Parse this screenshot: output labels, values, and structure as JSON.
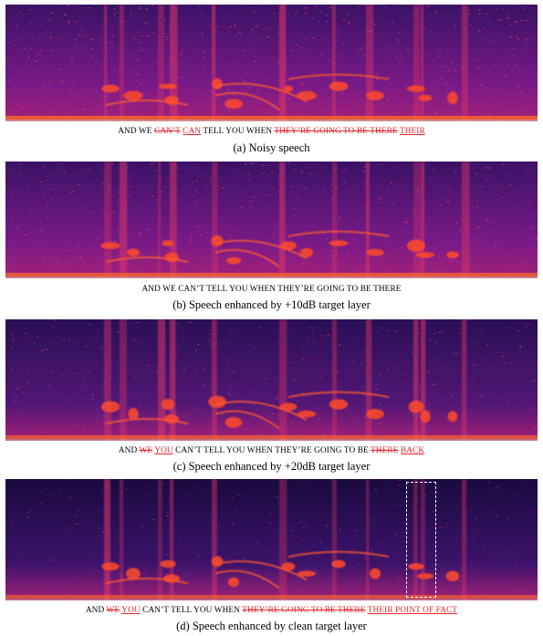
{
  "panels": [
    {
      "caption": "(a)  Noisy speech",
      "noise": 0.62,
      "transcript": [
        {
          "t": "AND WE ",
          "k": "plain"
        },
        {
          "t": "CAN’T",
          "k": "del"
        },
        {
          "t": " ",
          "k": "plain"
        },
        {
          "t": "CAN",
          "k": "ins"
        },
        {
          "t": " TELL YOU WHEN ",
          "k": "plain"
        },
        {
          "t": "THEY’RE GOING TO BE THERE",
          "k": "del"
        },
        {
          "t": " ",
          "k": "plain"
        },
        {
          "t": "THEIR",
          "k": "ins"
        }
      ]
    },
    {
      "caption": "(b)  Speech enhanced by +10dB target layer",
      "noise": 0.5,
      "transcript": [
        {
          "t": "AND WE CAN’T TELL YOU WHEN THEY’RE GOING TO BE THERE",
          "k": "plain"
        }
      ]
    },
    {
      "caption": "(c)  Speech enhanced by +20dB target layer",
      "noise": 0.32,
      "transcript": [
        {
          "t": "AND ",
          "k": "plain"
        },
        {
          "t": "WE",
          "k": "del"
        },
        {
          "t": " ",
          "k": "plain"
        },
        {
          "t": "YOU",
          "k": "ins"
        },
        {
          "t": " CAN’T TELL YOU WHEN THEY’RE GOING TO BE ",
          "k": "plain"
        },
        {
          "t": "THERE",
          "k": "del"
        },
        {
          "t": " ",
          "k": "plain"
        },
        {
          "t": "BACK",
          "k": "ins"
        }
      ]
    },
    {
      "caption": "(d) Speech enhanced by clean target layer",
      "noise": 0.15,
      "transcript": [
        {
          "t": "AND ",
          "k": "plain"
        },
        {
          "t": "WE",
          "k": "del"
        },
        {
          "t": " ",
          "k": "plain"
        },
        {
          "t": "YOU",
          "k": "ins"
        },
        {
          "t": " CAN’T TELL YOU WHEN ",
          "k": "plain"
        },
        {
          "t": "THEY’RE GOING TO BE THERE",
          "k": "del"
        },
        {
          "t": " ",
          "k": "plain"
        },
        {
          "t": "THEIR POINT OF FACT",
          "k": "ins"
        }
      ]
    }
  ]
}
